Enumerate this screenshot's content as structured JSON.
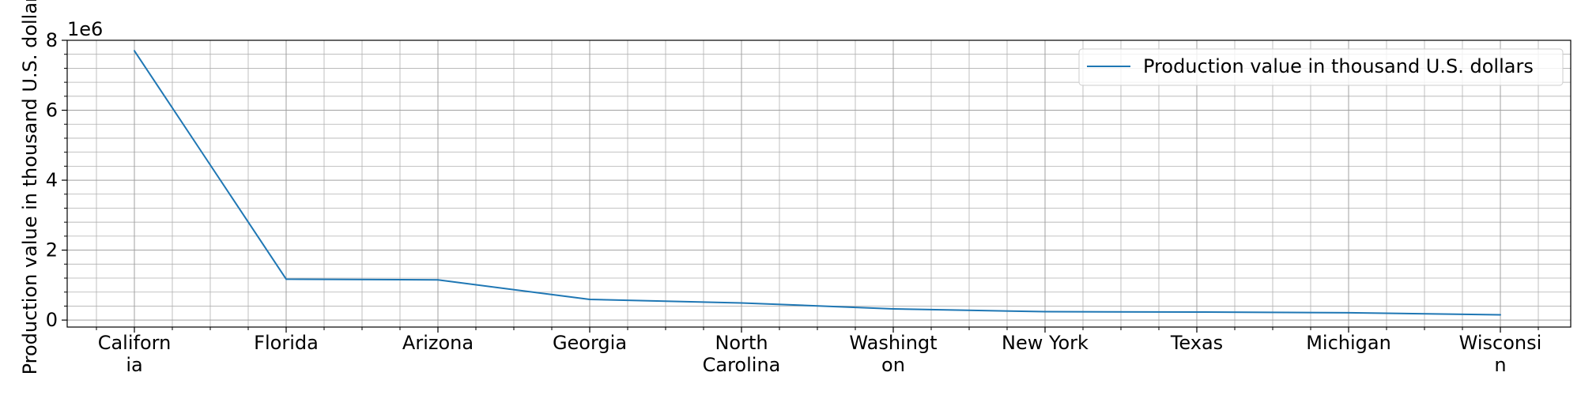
{
  "chart_data": {
    "type": "line",
    "title": "",
    "xlabel": "",
    "ylabel": "Production value in thousand U.S. dollars",
    "y_offset_label": "1e6",
    "ylim": [
      -200000,
      8000000
    ],
    "y_ticks": [
      0,
      2000000,
      4000000,
      6000000,
      8000000
    ],
    "y_tick_labels": [
      "0",
      "2",
      "4",
      "6",
      "8"
    ],
    "grid": true,
    "legend_position": "top-right",
    "categories": [
      [
        "Californ",
        "ia"
      ],
      [
        "Florida"
      ],
      [
        "Arizona"
      ],
      [
        "Georgia"
      ],
      [
        "North",
        "Carolina"
      ],
      [
        "Washingt",
        "on"
      ],
      [
        "New York"
      ],
      [
        "Texas"
      ],
      [
        "Michigan"
      ],
      [
        "Wisconsi",
        "n"
      ]
    ],
    "series": [
      {
        "name": "Production value in thousand U.S. dollars",
        "color": "#1f77b4",
        "values": [
          7700000,
          1170000,
          1150000,
          590000,
          490000,
          320000,
          240000,
          230000,
          210000,
          150000
        ]
      }
    ]
  }
}
